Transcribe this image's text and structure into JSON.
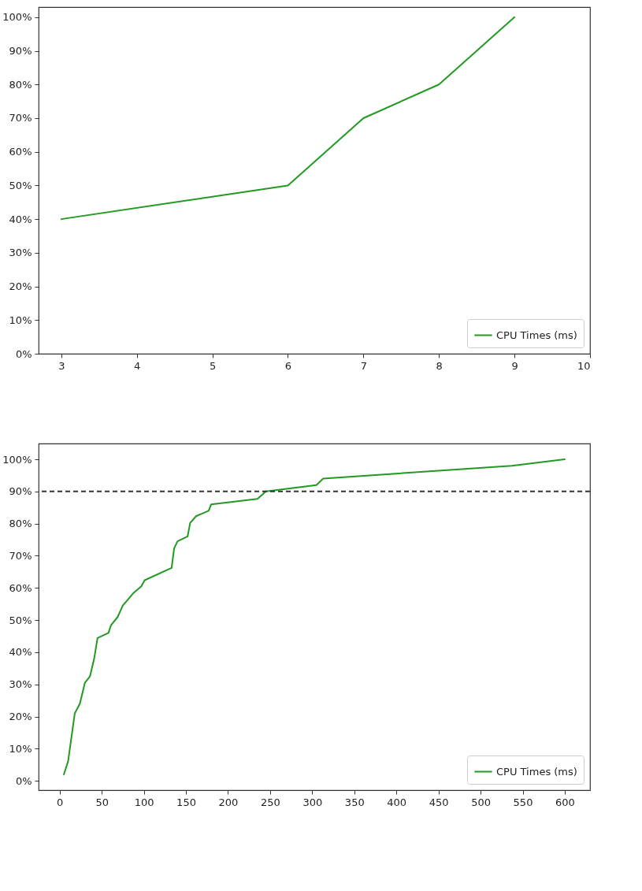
{
  "chart_data": [
    {
      "type": "line",
      "x": [
        3,
        6,
        7,
        8,
        9
      ],
      "series": [
        {
          "name": "CPU Times (ms)",
          "color": "#229a22",
          "values": [
            40,
            50,
            70,
            80,
            100
          ]
        }
      ],
      "xlim": [
        2.7,
        10
      ],
      "xticks": [
        3,
        4,
        5,
        6,
        7,
        8,
        9,
        10
      ],
      "ylim": [
        0,
        103
      ],
      "yticks": [
        {
          "value": 0,
          "label": "0%"
        },
        {
          "value": 10,
          "label": "10%"
        },
        {
          "value": 20,
          "label": "20%"
        },
        {
          "value": 30,
          "label": "30%"
        },
        {
          "value": 40,
          "label": "40%"
        },
        {
          "value": 50,
          "label": "50%"
        },
        {
          "value": 60,
          "label": "60%"
        },
        {
          "value": 70,
          "label": "70%"
        },
        {
          "value": 80,
          "label": "80%"
        },
        {
          "value": 90,
          "label": "90%"
        },
        {
          "value": 100,
          "label": "100%"
        }
      ],
      "legend": "bottom right",
      "grid": false
    },
    {
      "type": "line",
      "x": [
        5,
        10,
        18,
        24,
        30,
        36,
        41,
        45,
        58,
        61,
        69,
        75,
        88,
        97,
        101,
        133,
        136,
        140,
        152,
        155,
        162,
        177,
        180,
        235,
        245,
        305,
        313,
        537,
        600
      ],
      "series": [
        {
          "name": "CPU Times (ms)",
          "color": "#229a22",
          "values": [
            2,
            6,
            21,
            24,
            30.5,
            32.5,
            38,
            44.4,
            46,
            48.4,
            51,
            54.5,
            58.5,
            60.5,
            62.4,
            66.2,
            72.3,
            74.5,
            76,
            80.2,
            82.3,
            84,
            86,
            87.7,
            90,
            92,
            94,
            98,
            100
          ]
        }
      ],
      "xlim": [
        -25,
        630
      ],
      "xticks": [
        0,
        50,
        100,
        150,
        200,
        250,
        300,
        350,
        400,
        450,
        500,
        550,
        600
      ],
      "ylim": [
        -2.9,
        104.9
      ],
      "yticks": [
        {
          "value": 0,
          "label": "0%"
        },
        {
          "value": 10,
          "label": "10%"
        },
        {
          "value": 20,
          "label": "20%"
        },
        {
          "value": 30,
          "label": "30%"
        },
        {
          "value": 40,
          "label": "40%"
        },
        {
          "value": 50,
          "label": "50%"
        },
        {
          "value": 60,
          "label": "60%"
        },
        {
          "value": 70,
          "label": "70%"
        },
        {
          "value": 80,
          "label": "80%"
        },
        {
          "value": 90,
          "label": "90%"
        },
        {
          "value": 100,
          "label": "100%"
        }
      ],
      "ref_lines": [
        {
          "axis": "y",
          "value": 90,
          "color": "#333333",
          "line_style": "dashed"
        }
      ],
      "legend": "bottom right",
      "grid": false
    }
  ]
}
